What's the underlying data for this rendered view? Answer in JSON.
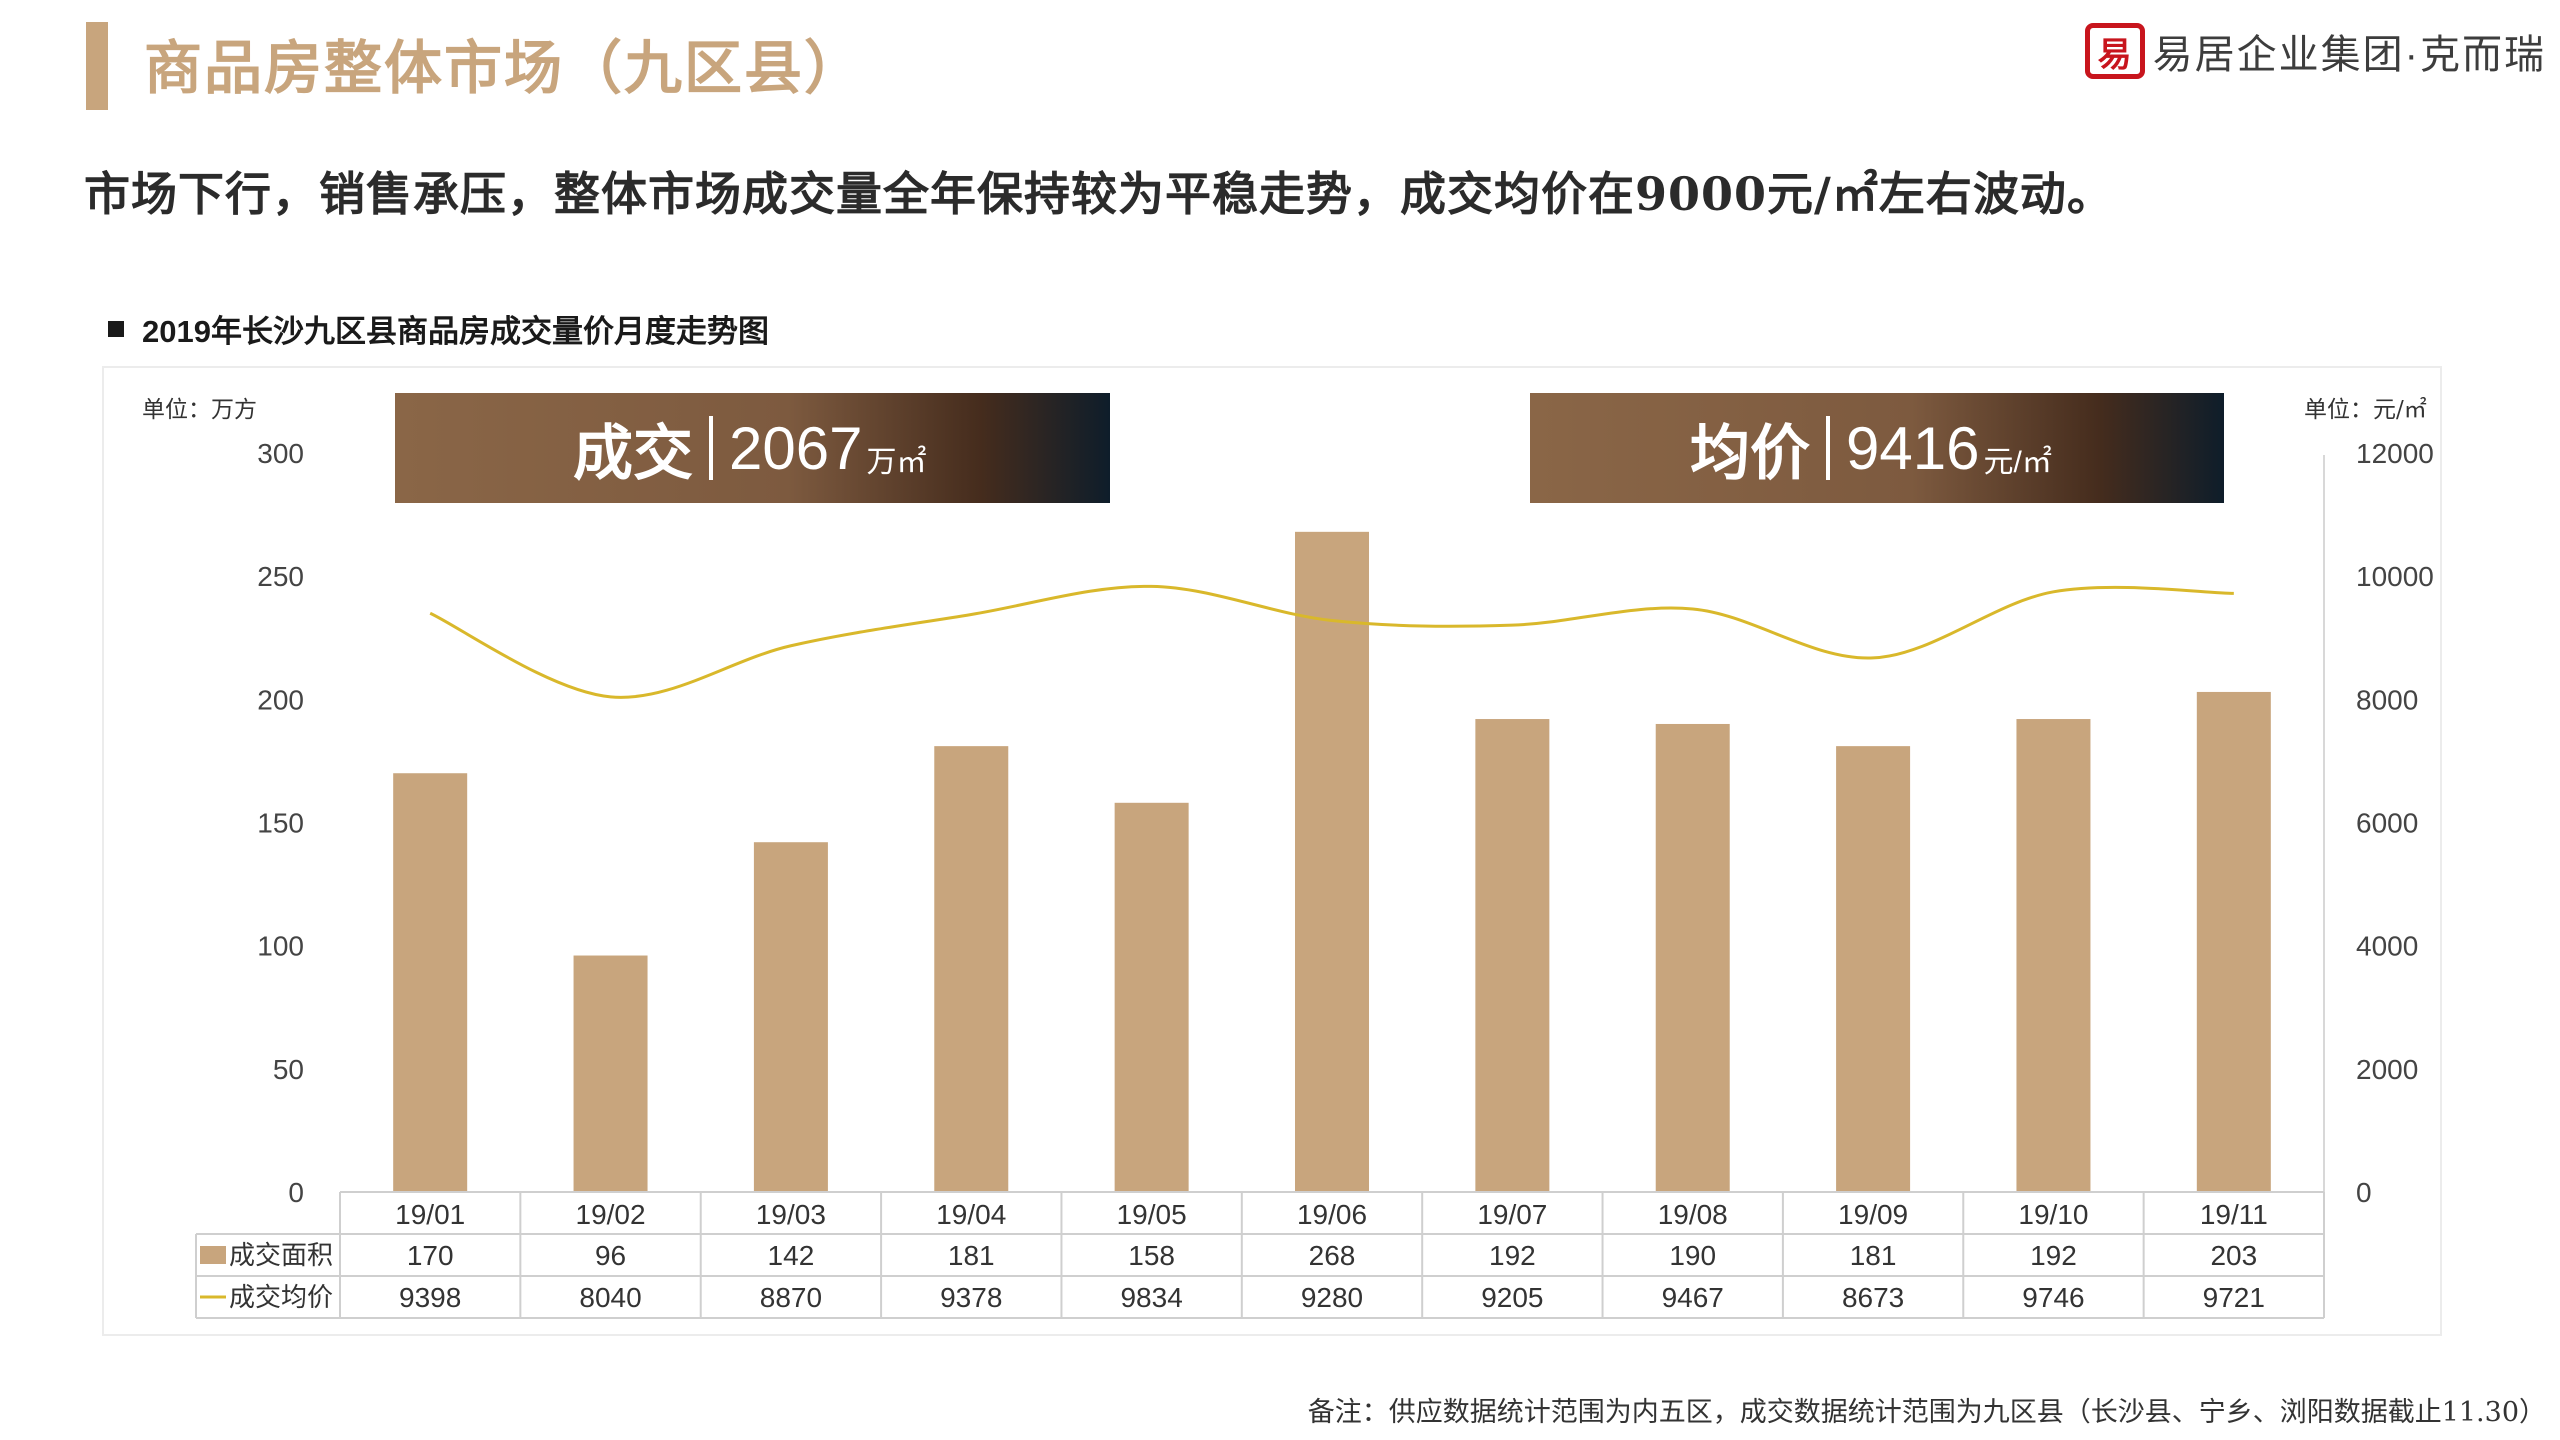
{
  "page": {
    "title": "商品房整体市场（九区县）",
    "headline": "市场下行，销售承压，整体市场成交量全年保持较为平稳走势，成交均价在9000元/㎡左右波动。",
    "footnote": "备注：供应数据统计范围为内五区，成交数据统计范围为九区县（长沙县、宁乡、浏阳数据截止11.30）"
  },
  "logo": {
    "seal_char": "易居",
    "text": "易居企业集团·克而瑞"
  },
  "banners": {
    "volume": {
      "label": "成交",
      "value": "2067",
      "unit": "万㎡"
    },
    "price": {
      "label": "均价",
      "value": "9416",
      "unit": "元/㎡"
    }
  },
  "chart_data": {
    "type": "bar",
    "title": "2019年长沙九区县商品房成交量价月度走势图",
    "categories": [
      "19/01",
      "19/02",
      "19/03",
      "19/04",
      "19/05",
      "19/06",
      "19/07",
      "19/08",
      "19/09",
      "19/10",
      "19/11"
    ],
    "series": [
      {
        "name": "成交面积",
        "type": "bar",
        "axis": "left",
        "color": "#c8a57d",
        "values": [
          170,
          96,
          142,
          181,
          158,
          268,
          192,
          190,
          181,
          192,
          203
        ]
      },
      {
        "name": "成交均价",
        "type": "line",
        "axis": "right",
        "color": "#d9b82b",
        "values": [
          9398,
          8040,
          8870,
          9378,
          9834,
          9280,
          9205,
          9467,
          8673,
          9746,
          9721
        ]
      }
    ],
    "y_left": {
      "label": "单位：万方",
      "range": [
        0,
        300
      ],
      "ticks": [
        0,
        50,
        100,
        150,
        200,
        250,
        300
      ]
    },
    "y_right": {
      "label": "单位：元/㎡",
      "range": [
        0,
        12000
      ],
      "ticks": [
        0,
        2000,
        4000,
        6000,
        8000,
        10000,
        12000
      ]
    },
    "grid": false,
    "legend": "data-table"
  }
}
